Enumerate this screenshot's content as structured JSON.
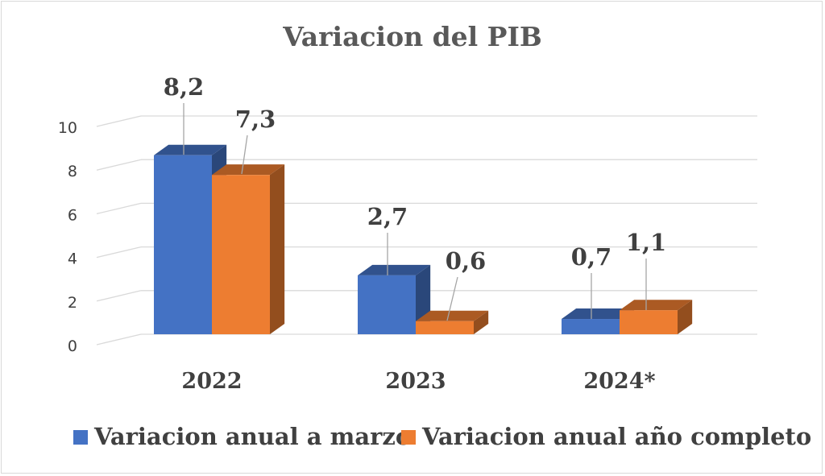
{
  "chart_data": {
    "type": "bar",
    "title": "Variacion del PIB",
    "categories": [
      "2022",
      "2023",
      "2024*"
    ],
    "series": [
      {
        "name": "Variacion anual a marzo",
        "values": [
          8.2,
          2.7,
          0.7
        ],
        "labels": [
          "8,2",
          "2,7",
          "0,7"
        ],
        "color": "#4472C4"
      },
      {
        "name": "Variacion anual año completo",
        "values": [
          7.3,
          0.6,
          1.1
        ],
        "labels": [
          "7,3",
          "0,6",
          "1,1"
        ],
        "color": "#ED7D31"
      }
    ],
    "ylim": [
      0,
      10
    ],
    "yticks": [
      0,
      2,
      4,
      6,
      8,
      10
    ],
    "grid": true,
    "legend": "bottom",
    "style": "3d-clustered-column"
  }
}
